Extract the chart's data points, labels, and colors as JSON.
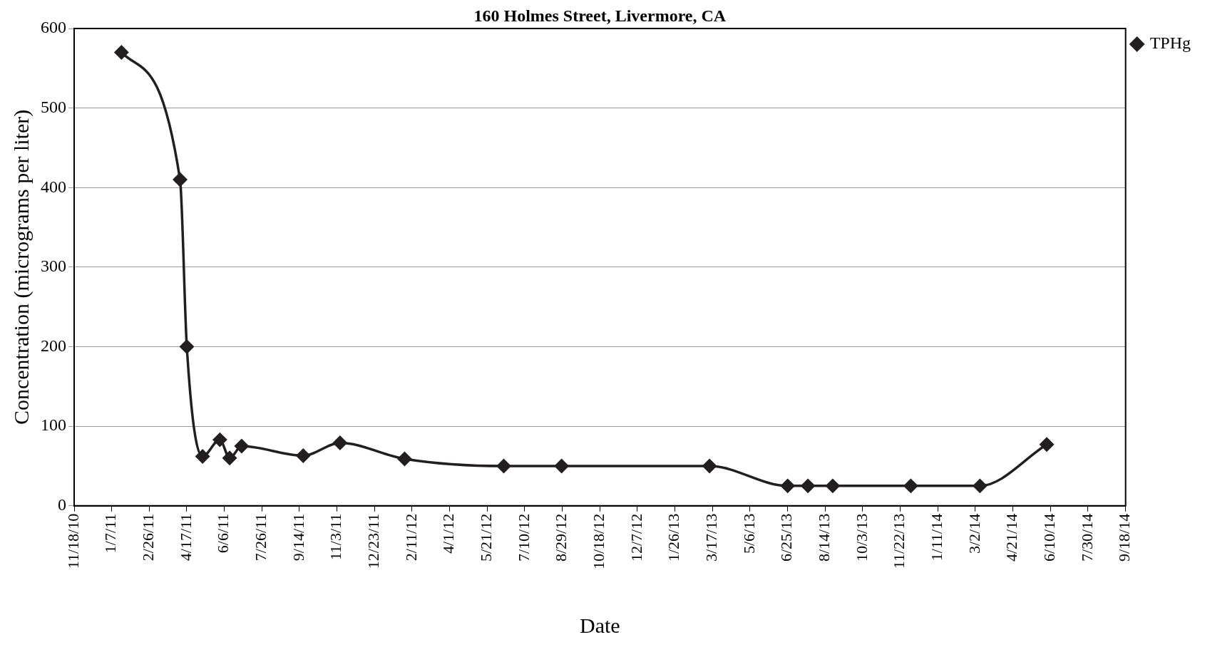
{
  "chart_data": {
    "type": "line",
    "title": "160 Holmes Street, Livermore, CA",
    "xlabel": "Date",
    "ylabel": "Concentration (micrograms per liter)",
    "x": [
      "2011-01-20",
      "2011-04-08",
      "2011-04-17",
      "2011-05-08",
      "2011-05-31",
      "2011-06-13",
      "2011-06-29",
      "2011-09-19",
      "2011-11-07",
      "2012-02-01",
      "2012-06-12",
      "2012-08-28",
      "2013-03-13",
      "2013-06-25",
      "2013-07-22",
      "2013-08-24",
      "2013-12-06",
      "2014-03-08",
      "2014-06-05"
    ],
    "series": [
      {
        "name": "TPHg",
        "color": "#231f20",
        "values": [
          570,
          410,
          200,
          62,
          83,
          60,
          75,
          63,
          79,
          59,
          50,
          50,
          50,
          25,
          25,
          25,
          25,
          25,
          77
        ]
      }
    ],
    "xlim": [
      "2010-11-18",
      "2014-09-18"
    ],
    "xticks": [
      {
        "value": "2010-11-18",
        "label": "11/18/10"
      },
      {
        "value": "2011-01-07",
        "label": "1/7/11"
      },
      {
        "value": "2011-02-26",
        "label": "2/26/11"
      },
      {
        "value": "2011-04-17",
        "label": "4/17/11"
      },
      {
        "value": "2011-06-06",
        "label": "6/6/11"
      },
      {
        "value": "2011-07-26",
        "label": "7/26/11"
      },
      {
        "value": "2011-09-14",
        "label": "9/14/11"
      },
      {
        "value": "2011-11-03",
        "label": "11/3/11"
      },
      {
        "value": "2011-12-23",
        "label": "12/23/11"
      },
      {
        "value": "2012-02-11",
        "label": "2/11/12"
      },
      {
        "value": "2012-04-01",
        "label": "4/1/12"
      },
      {
        "value": "2012-05-21",
        "label": "5/21/12"
      },
      {
        "value": "2012-07-10",
        "label": "7/10/12"
      },
      {
        "value": "2012-08-29",
        "label": "8/29/12"
      },
      {
        "value": "2012-10-18",
        "label": "10/18/12"
      },
      {
        "value": "2012-12-07",
        "label": "12/7/12"
      },
      {
        "value": "2013-01-26",
        "label": "1/26/13"
      },
      {
        "value": "2013-03-17",
        "label": "3/17/13"
      },
      {
        "value": "2013-05-06",
        "label": "5/6/13"
      },
      {
        "value": "2013-06-25",
        "label": "6/25/13"
      },
      {
        "value": "2013-08-14",
        "label": "8/14/13"
      },
      {
        "value": "2013-10-03",
        "label": "10/3/13"
      },
      {
        "value": "2013-11-22",
        "label": "11/22/13"
      },
      {
        "value": "2014-01-11",
        "label": "1/11/14"
      },
      {
        "value": "2014-03-02",
        "label": "3/2/14"
      },
      {
        "value": "2014-04-21",
        "label": "4/21/14"
      },
      {
        "value": "2014-06-10",
        "label": "6/10/14"
      },
      {
        "value": "2014-07-30",
        "label": "7/30/14"
      },
      {
        "value": "2014-09-18",
        "label": "9/18/14"
      }
    ],
    "ylim": [
      0,
      600
    ],
    "yticks": [
      0,
      100,
      200,
      300,
      400,
      500,
      600
    ],
    "grid": "y",
    "legend": "top right",
    "marker": "diamond",
    "line_style": "solid"
  }
}
